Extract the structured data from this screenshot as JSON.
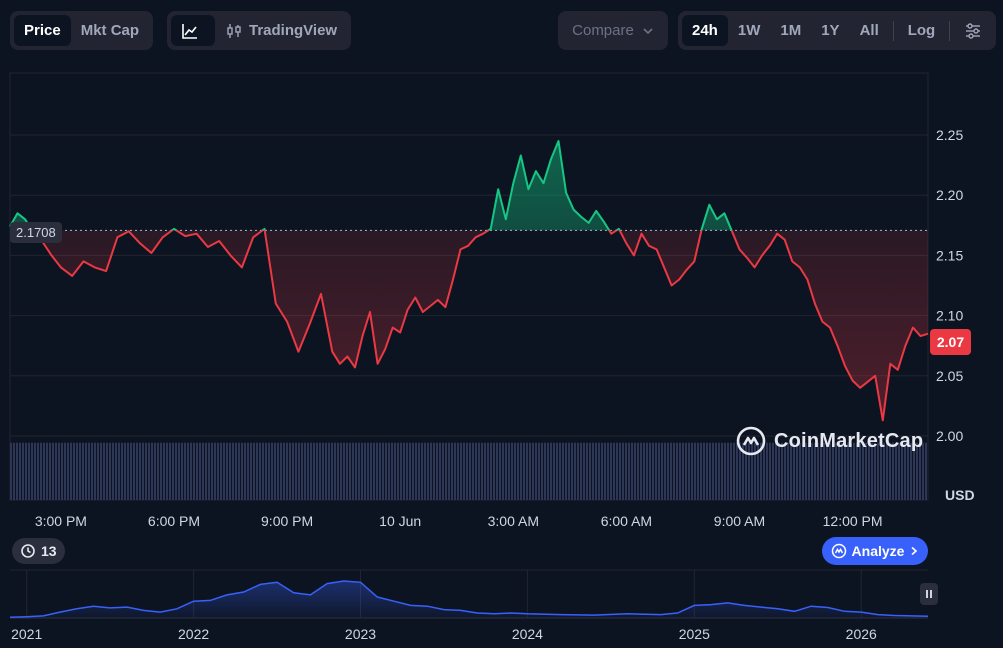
{
  "toolbar": {
    "metric_tabs": [
      {
        "label": "Price",
        "active": true
      },
      {
        "label": "Mkt Cap",
        "active": false
      }
    ],
    "chart_type": {
      "line_icon": "line-chart-icon",
      "tradingview_icon": "candlestick-icon",
      "tradingview_label": "TradingView"
    },
    "compare_label": "Compare",
    "ranges": [
      {
        "label": "24h",
        "active": true
      },
      {
        "label": "1W",
        "active": false
      },
      {
        "label": "1M",
        "active": false
      },
      {
        "label": "1Y",
        "active": false
      },
      {
        "label": "All",
        "active": false
      }
    ],
    "log_label": "Log",
    "settings_icon": "sliders-icon"
  },
  "chart_data": {
    "type": "line",
    "currency_label": "USD",
    "reference_price": 2.1708,
    "reference_label": "2.1708",
    "last_price_label": "2.07",
    "ylim": [
      1.95,
      2.3
    ],
    "y_ticks": [
      2.0,
      2.05,
      2.1,
      2.15,
      2.2,
      2.25
    ],
    "y_tick_labels": [
      "2.00",
      "2.05",
      "2.10",
      "2.15",
      "2.20",
      "2.25"
    ],
    "x_tick_labels": [
      "3:00 PM",
      "6:00 PM",
      "9:00 PM",
      "10 Jun",
      "3:00 AM",
      "6:00 AM",
      "9:00 AM",
      "12:00 PM"
    ],
    "x_tick_hours": [
      1,
      4,
      7,
      10,
      13,
      16,
      19,
      22
    ],
    "x_range_hours": [
      -0.35,
      24.0
    ],
    "above_color": "#16c784",
    "below_color": "#ea3943",
    "price_points": [
      [
        -0.35,
        2.174
      ],
      [
        -0.15,
        2.185
      ],
      [
        0.05,
        2.18
      ],
      [
        0.25,
        2.17
      ],
      [
        0.5,
        2.162
      ],
      [
        0.75,
        2.15
      ],
      [
        1.0,
        2.14
      ],
      [
        1.3,
        2.133
      ],
      [
        1.6,
        2.145
      ],
      [
        1.9,
        2.14
      ],
      [
        2.2,
        2.137
      ],
      [
        2.5,
        2.165
      ],
      [
        2.8,
        2.17
      ],
      [
        3.1,
        2.16
      ],
      [
        3.4,
        2.152
      ],
      [
        3.7,
        2.165
      ],
      [
        4.0,
        2.172
      ],
      [
        4.3,
        2.166
      ],
      [
        4.6,
        2.168
      ],
      [
        4.9,
        2.157
      ],
      [
        5.2,
        2.162
      ],
      [
        5.5,
        2.15
      ],
      [
        5.8,
        2.14
      ],
      [
        6.1,
        2.165
      ],
      [
        6.4,
        2.172
      ],
      [
        6.7,
        2.11
      ],
      [
        7.0,
        2.095
      ],
      [
        7.3,
        2.07
      ],
      [
        7.6,
        2.093
      ],
      [
        7.9,
        2.118
      ],
      [
        8.2,
        2.07
      ],
      [
        8.4,
        2.06
      ],
      [
        8.6,
        2.066
      ],
      [
        8.8,
        2.057
      ],
      [
        9.0,
        2.083
      ],
      [
        9.2,
        2.103
      ],
      [
        9.4,
        2.06
      ],
      [
        9.6,
        2.072
      ],
      [
        9.8,
        2.09
      ],
      [
        10.0,
        2.086
      ],
      [
        10.2,
        2.105
      ],
      [
        10.4,
        2.115
      ],
      [
        10.6,
        2.103
      ],
      [
        10.8,
        2.108
      ],
      [
        11.0,
        2.113
      ],
      [
        11.2,
        2.107
      ],
      [
        11.4,
        2.13
      ],
      [
        11.6,
        2.155
      ],
      [
        11.8,
        2.158
      ],
      [
        12.0,
        2.165
      ],
      [
        12.2,
        2.168
      ],
      [
        12.4,
        2.172
      ],
      [
        12.6,
        2.205
      ],
      [
        12.8,
        2.18
      ],
      [
        13.0,
        2.21
      ],
      [
        13.2,
        2.233
      ],
      [
        13.4,
        2.205
      ],
      [
        13.6,
        2.22
      ],
      [
        13.8,
        2.21
      ],
      [
        14.0,
        2.23
      ],
      [
        14.2,
        2.245
      ],
      [
        14.4,
        2.202
      ],
      [
        14.6,
        2.188
      ],
      [
        14.8,
        2.182
      ],
      [
        15.0,
        2.177
      ],
      [
        15.2,
        2.187
      ],
      [
        15.4,
        2.178
      ],
      [
        15.6,
        2.168
      ],
      [
        15.8,
        2.172
      ],
      [
        16.0,
        2.16
      ],
      [
        16.2,
        2.15
      ],
      [
        16.4,
        2.168
      ],
      [
        16.6,
        2.158
      ],
      [
        16.8,
        2.155
      ],
      [
        17.0,
        2.14
      ],
      [
        17.2,
        2.125
      ],
      [
        17.4,
        2.13
      ],
      [
        17.6,
        2.138
      ],
      [
        17.8,
        2.145
      ],
      [
        18.0,
        2.172
      ],
      [
        18.2,
        2.192
      ],
      [
        18.4,
        2.18
      ],
      [
        18.6,
        2.185
      ],
      [
        18.8,
        2.17
      ],
      [
        19.0,
        2.155
      ],
      [
        19.2,
        2.148
      ],
      [
        19.4,
        2.14
      ],
      [
        19.6,
        2.15
      ],
      [
        19.8,
        2.158
      ],
      [
        20.0,
        2.168
      ],
      [
        20.2,
        2.163
      ],
      [
        20.4,
        2.145
      ],
      [
        20.6,
        2.14
      ],
      [
        20.8,
        2.13
      ],
      [
        21.0,
        2.11
      ],
      [
        21.2,
        2.095
      ],
      [
        21.4,
        2.09
      ],
      [
        21.6,
        2.075
      ],
      [
        21.8,
        2.058
      ],
      [
        22.0,
        2.046
      ],
      [
        22.2,
        2.04
      ],
      [
        22.4,
        2.045
      ],
      [
        22.6,
        2.05
      ],
      [
        22.8,
        2.013
      ],
      [
        23.0,
        2.06
      ],
      [
        23.2,
        2.055
      ],
      [
        23.4,
        2.075
      ],
      [
        23.6,
        2.09
      ],
      [
        23.8,
        2.083
      ],
      [
        24.0,
        2.085
      ]
    ],
    "volume_level": 0.97
  },
  "navigator": {
    "year_labels": [
      "2021",
      "2022",
      "2023",
      "2024",
      "2025",
      "2026"
    ],
    "year_values": [
      2021,
      2022,
      2023,
      2024,
      2025,
      2026
    ],
    "x_range": [
      2020.9,
      2026.4
    ],
    "history_points": [
      [
        2020.9,
        0.02
      ],
      [
        2021.0,
        0.03
      ],
      [
        2021.1,
        0.05
      ],
      [
        2021.2,
        0.14
      ],
      [
        2021.3,
        0.22
      ],
      [
        2021.4,
        0.28
      ],
      [
        2021.5,
        0.24
      ],
      [
        2021.6,
        0.26
      ],
      [
        2021.7,
        0.18
      ],
      [
        2021.8,
        0.14
      ],
      [
        2021.9,
        0.22
      ],
      [
        2022.0,
        0.4
      ],
      [
        2022.1,
        0.42
      ],
      [
        2022.2,
        0.55
      ],
      [
        2022.3,
        0.62
      ],
      [
        2022.4,
        0.8
      ],
      [
        2022.5,
        0.85
      ],
      [
        2022.6,
        0.6
      ],
      [
        2022.7,
        0.55
      ],
      [
        2022.8,
        0.82
      ],
      [
        2022.9,
        0.88
      ],
      [
        2023.0,
        0.85
      ],
      [
        2023.1,
        0.5
      ],
      [
        2023.2,
        0.4
      ],
      [
        2023.3,
        0.3
      ],
      [
        2023.4,
        0.28
      ],
      [
        2023.5,
        0.2
      ],
      [
        2023.6,
        0.18
      ],
      [
        2023.7,
        0.12
      ],
      [
        2023.8,
        0.1
      ],
      [
        2023.9,
        0.12
      ],
      [
        2024.0,
        0.1
      ],
      [
        2024.2,
        0.08
      ],
      [
        2024.4,
        0.07
      ],
      [
        2024.6,
        0.1
      ],
      [
        2024.8,
        0.08
      ],
      [
        2024.9,
        0.12
      ],
      [
        2025.0,
        0.3
      ],
      [
        2025.1,
        0.32
      ],
      [
        2025.2,
        0.36
      ],
      [
        2025.3,
        0.3
      ],
      [
        2025.4,
        0.26
      ],
      [
        2025.5,
        0.22
      ],
      [
        2025.6,
        0.16
      ],
      [
        2025.7,
        0.28
      ],
      [
        2025.8,
        0.25
      ],
      [
        2025.9,
        0.16
      ],
      [
        2026.0,
        0.14
      ],
      [
        2026.1,
        0.08
      ],
      [
        2026.2,
        0.06
      ],
      [
        2026.3,
        0.05
      ],
      [
        2026.4,
        0.04
      ]
    ]
  },
  "watermark_label": "CoinMarketCap",
  "history_count": "13",
  "analyze_label": "Analyze"
}
